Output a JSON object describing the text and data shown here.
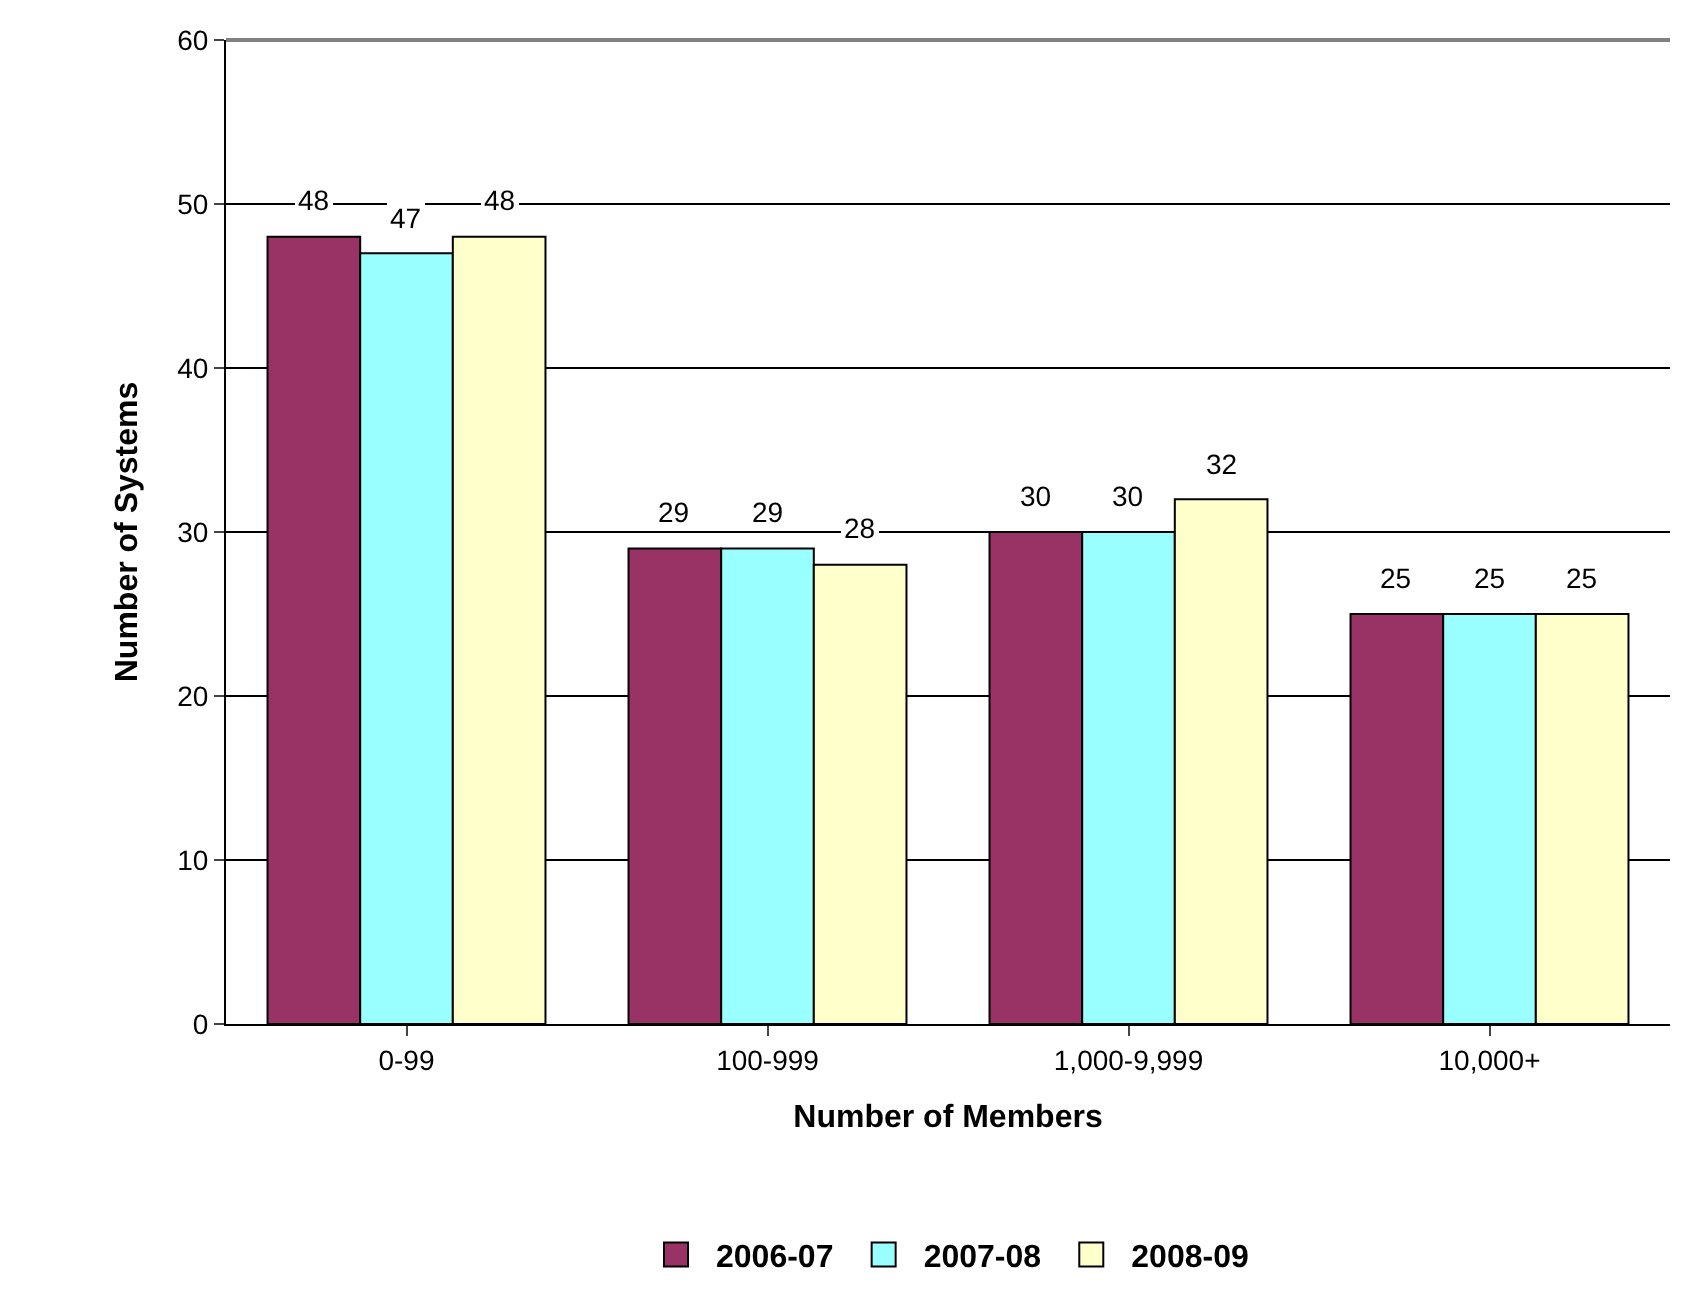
{
  "chart_data": {
    "type": "bar",
    "xlabel": "Number of Members",
    "ylabel": "Number of Systems",
    "categories": [
      "0-99",
      "100-999",
      "1,000-9,999",
      "10,000+"
    ],
    "series": [
      {
        "name": "2006-07",
        "color": "#993366",
        "values": [
          48,
          29,
          30,
          25
        ]
      },
      {
        "name": "2007-08",
        "color": "#99ffff",
        "values": [
          47,
          29,
          30,
          25
        ]
      },
      {
        "name": "2008-09",
        "color": "#ffffcc",
        "values": [
          48,
          28,
          32,
          25
        ]
      }
    ],
    "ylim": [
      0,
      60
    ],
    "yticks": [
      0,
      10,
      20,
      30,
      40,
      50,
      60
    ],
    "grid": "y",
    "legend": "bottom",
    "data_labels": true
  }
}
